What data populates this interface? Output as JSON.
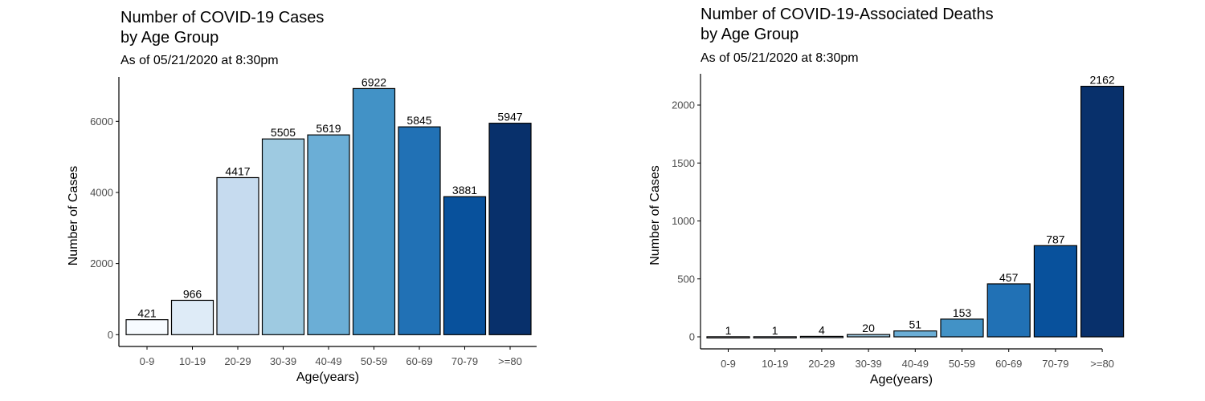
{
  "colors": {
    "bar_fills": [
      "#F7FBFF",
      "#DEEBF7",
      "#C6DBEF",
      "#9ECAE1",
      "#6BAED6",
      "#4292C6",
      "#2171B5",
      "#08519C",
      "#08306B"
    ],
    "bar_stroke": "#000000",
    "axis": "#000000",
    "tick_text": "#4d4d4d"
  },
  "chart_data": [
    {
      "type": "bar",
      "title_line1": "Number of COVID-19 Cases",
      "title_line2": "by Age Group",
      "subtitle": "As of 05/21/2020 at 8:30pm",
      "xlabel": "Age(years)",
      "ylabel": "Number of Cases",
      "categories": [
        "0-9",
        "10-19",
        "20-29",
        "30-39",
        "40-49",
        "50-59",
        "60-69",
        "70-79",
        ">=80"
      ],
      "values": [
        421,
        966,
        4417,
        5505,
        5619,
        6922,
        5845,
        3881,
        5947
      ],
      "data_labels": [
        "421",
        "966",
        "4417",
        "5505",
        "5619",
        "6922",
        "5845",
        "3881",
        "5947"
      ],
      "yticks": [
        0,
        2000,
        4000,
        6000
      ],
      "ytick_labels": [
        "0",
        "2000",
        "4000",
        "6000"
      ],
      "ylim": [
        0,
        7000
      ],
      "grid": false,
      "legend": "none"
    },
    {
      "type": "bar",
      "title_line1": "Number of COVID-19-Associated Deaths",
      "title_line2": "by Age Group",
      "subtitle": "As of 05/21/2020 at 8:30pm",
      "xlabel": "Age(years)",
      "ylabel": "Number of Cases",
      "categories": [
        "0-9",
        "10-19",
        "20-29",
        "30-39",
        "40-49",
        "50-59",
        "60-69",
        "70-79",
        ">=80"
      ],
      "values": [
        1,
        1,
        4,
        20,
        51,
        153,
        457,
        787,
        2162
      ],
      "data_labels": [
        "1",
        "1",
        "4",
        "20",
        "51",
        "153",
        "457",
        "787",
        "2162"
      ],
      "yticks": [
        0,
        500,
        1000,
        1500,
        2000
      ],
      "ytick_labels": [
        "0",
        "500",
        "1000",
        "1500",
        "2000"
      ],
      "ylim": [
        0,
        2200
      ],
      "grid": false,
      "legend": "none"
    }
  ]
}
